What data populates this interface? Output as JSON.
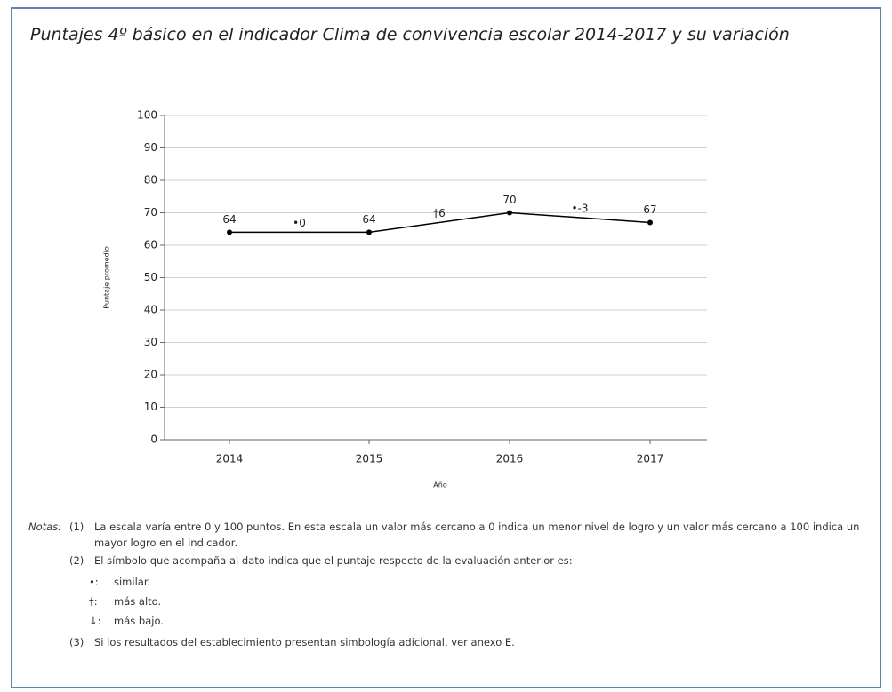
{
  "chart_data": {
    "type": "line",
    "title": "Puntajes 4º básico en el indicador Clima de convivencia escolar 2014-2017 y su variación",
    "categories": [
      "2014",
      "2015",
      "2016",
      "2017"
    ],
    "values": [
      64,
      64,
      70,
      67
    ],
    "color": "#000000",
    "ylim": [
      0,
      100
    ],
    "yticks": [
      0,
      10,
      20,
      30,
      40,
      50,
      60,
      70,
      80,
      90,
      100
    ],
    "grid": true,
    "ylabel": "Puntaje promedio",
    "xlabel": "Año",
    "variation": {
      "values": [
        0,
        6,
        -3
      ],
      "value_labels": [
        "•0",
        "†6",
        "•-3"
      ]
    }
  },
  "notes": {
    "label": "Notas:",
    "items": [
      {
        "number": "(1)",
        "text": "La escala varía entre 0 y 100 puntos. En esta escala un valor más cercano a 0 indica un menor nivel de logro y un valor más cercano a 100 indica un mayor logro en el indicador."
      },
      {
        "number": "(2)",
        "text": "El símbolo que acompaña al dato indica que el puntaje respecto de la evaluación anterior es:",
        "symbols": [
          {
            "symbol": "•:",
            "text": "similar."
          },
          {
            "symbol": "†:",
            "text": "más alto."
          },
          {
            "symbol": "↓:",
            "text": "más bajo."
          }
        ]
      },
      {
        "number": "(3)",
        "text": "Si los resultados del establecimiento presentan simbología adicional, ver anexo E."
      }
    ]
  }
}
